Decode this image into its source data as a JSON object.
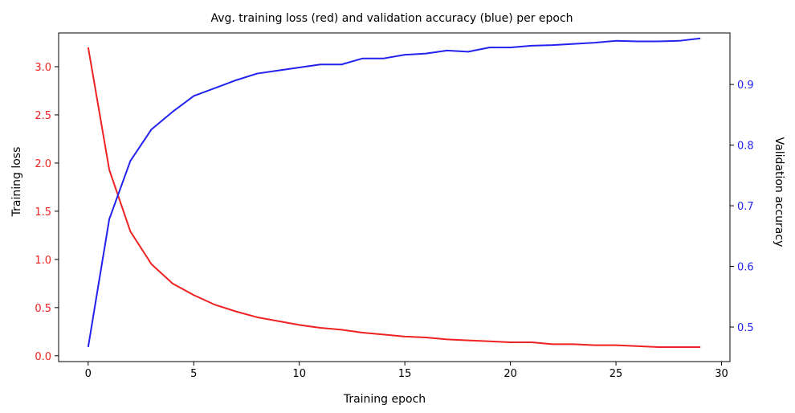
{
  "chart_data": {
    "type": "line",
    "title": "Avg. training loss (red) and validation accuracy (blue) per epoch",
    "xlabel": "Training epoch",
    "ylabel_left": "Training loss",
    "ylabel_right": "Validation accuracy",
    "x": [
      0,
      1,
      2,
      3,
      4,
      5,
      6,
      7,
      8,
      9,
      10,
      11,
      12,
      13,
      14,
      15,
      16,
      17,
      18,
      19,
      20,
      21,
      22,
      23,
      24,
      25,
      26,
      27,
      28,
      29
    ],
    "xlim": [
      -1.4,
      30.4
    ],
    "xticks": [
      0,
      5,
      10,
      15,
      20,
      25,
      30
    ],
    "xtick_labels": [
      "0",
      "5",
      "10",
      "15",
      "20",
      "25",
      "30"
    ],
    "ylim_left": [
      -0.06,
      3.35
    ],
    "yticks_left": [
      0.0,
      0.5,
      1.0,
      1.5,
      2.0,
      2.5,
      3.0
    ],
    "ytick_labels_left": [
      "0.0",
      "0.5",
      "1.0",
      "1.5",
      "2.0",
      "2.5",
      "3.0"
    ],
    "ylim_right": [
      0.443,
      0.985
    ],
    "yticks_right": [
      0.5,
      0.6,
      0.7,
      0.8,
      0.9
    ],
    "ytick_labels_right": [
      "0.5",
      "0.6",
      "0.7",
      "0.8",
      "0.9"
    ],
    "grid": false,
    "series": [
      {
        "name": "Training loss",
        "axis": "left",
        "color": "#ee2222",
        "values": [
          3.2,
          1.93,
          1.29,
          0.95,
          0.75,
          0.63,
          0.53,
          0.46,
          0.4,
          0.36,
          0.32,
          0.29,
          0.27,
          0.24,
          0.22,
          0.2,
          0.19,
          0.17,
          0.16,
          0.15,
          0.14,
          0.14,
          0.12,
          0.12,
          0.11,
          0.11,
          0.1,
          0.09,
          0.09,
          0.09
        ]
      },
      {
        "name": "Validation accuracy",
        "axis": "right",
        "color": "#2222ee",
        "values": [
          0.467,
          0.678,
          0.774,
          0.826,
          0.855,
          0.881,
          0.894,
          0.907,
          0.918,
          0.923,
          0.928,
          0.933,
          0.933,
          0.943,
          0.943,
          0.949,
          0.951,
          0.956,
          0.954,
          0.961,
          0.961,
          0.964,
          0.965,
          0.967,
          0.969,
          0.972,
          0.971,
          0.971,
          0.972,
          0.976
        ]
      }
    ],
    "colors": {
      "loss_axis": "#ee2222",
      "accuracy_axis": "#2222ee",
      "frame": "#000000"
    }
  }
}
